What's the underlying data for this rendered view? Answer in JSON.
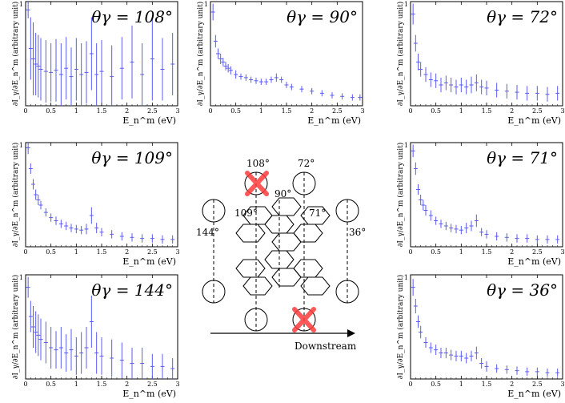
{
  "chart_data": [
    {
      "type": "scatter",
      "id": "p108",
      "title": "θγ = 108°",
      "xlabel": "E_n^m (eV)",
      "ylabel": "∂I_γ/∂E_n^m (arbitrary unit)",
      "xlim": [
        0,
        3
      ],
      "x_ticks": [
        0,
        0.5,
        1,
        1.5,
        2,
        2.5,
        3
      ],
      "x": [
        0.05,
        0.1,
        0.15,
        0.2,
        0.25,
        0.3,
        0.4,
        0.5,
        0.6,
        0.7,
        0.8,
        0.9,
        1.0,
        1.1,
        1.2,
        1.3,
        1.4,
        1.5,
        1.7,
        1.9,
        2.1,
        2.3,
        2.5,
        2.7,
        2.9
      ],
      "y": [
        0.92,
        0.55,
        0.45,
        0.4,
        0.38,
        0.35,
        0.33,
        0.32,
        0.34,
        0.3,
        0.36,
        0.28,
        0.35,
        0.3,
        0.32,
        0.5,
        0.3,
        0.33,
        0.28,
        0.36,
        0.42,
        0.3,
        0.45,
        0.35,
        0.4
      ],
      "err": [
        0.08,
        0.3,
        0.35,
        0.3,
        0.3,
        0.3,
        0.3,
        0.28,
        0.3,
        0.3,
        0.3,
        0.28,
        0.3,
        0.3,
        0.3,
        0.35,
        0.3,
        0.3,
        0.3,
        0.3,
        0.35,
        0.3,
        0.4,
        0.3,
        0.3
      ]
    },
    {
      "type": "scatter",
      "id": "p90",
      "title": "θγ = 90°",
      "xlabel": "E_n^m (eV)",
      "ylabel": "∂I_γ/∂E_n^m (arbitrary unit)",
      "xlim": [
        0,
        3
      ],
      "x_ticks": [
        0,
        0.5,
        1,
        1.5,
        2,
        2.5,
        3
      ],
      "x": [
        0.05,
        0.1,
        0.15,
        0.2,
        0.25,
        0.3,
        0.35,
        0.4,
        0.5,
        0.6,
        0.7,
        0.8,
        0.9,
        1.0,
        1.1,
        1.2,
        1.3,
        1.4,
        1.5,
        1.6,
        1.8,
        2.0,
        2.2,
        2.4,
        2.6,
        2.8,
        2.95
      ],
      "y": [
        0.9,
        0.62,
        0.5,
        0.45,
        0.42,
        0.38,
        0.36,
        0.34,
        0.3,
        0.28,
        0.27,
        0.25,
        0.24,
        0.23,
        0.23,
        0.25,
        0.27,
        0.25,
        0.2,
        0.18,
        0.16,
        0.14,
        0.12,
        0.1,
        0.09,
        0.08,
        0.08
      ],
      "err": [
        0.08,
        0.06,
        0.05,
        0.05,
        0.04,
        0.04,
        0.04,
        0.04,
        0.04,
        0.03,
        0.03,
        0.03,
        0.03,
        0.03,
        0.03,
        0.03,
        0.04,
        0.03,
        0.03,
        0.03,
        0.03,
        0.03,
        0.03,
        0.03,
        0.03,
        0.03,
        0.03
      ]
    },
    {
      "type": "scatter",
      "id": "p72",
      "title": "θγ = 72°",
      "xlabel": "E_n^m (eV)",
      "ylabel": "∂I_γ/∂E_n^m (arbitrary unit)",
      "xlim": [
        0,
        3
      ],
      "x_ticks": [
        0,
        0.5,
        1,
        1.5,
        2,
        2.5,
        3
      ],
      "x": [
        0.05,
        0.1,
        0.15,
        0.2,
        0.3,
        0.4,
        0.5,
        0.6,
        0.7,
        0.8,
        0.9,
        1.0,
        1.1,
        1.2,
        1.3,
        1.4,
        1.5,
        1.7,
        1.9,
        2.1,
        2.3,
        2.5,
        2.7,
        2.9
      ],
      "y": [
        0.88,
        0.6,
        0.42,
        0.35,
        0.3,
        0.25,
        0.24,
        0.2,
        0.22,
        0.2,
        0.18,
        0.2,
        0.18,
        0.2,
        0.22,
        0.18,
        0.17,
        0.15,
        0.14,
        0.13,
        0.12,
        0.12,
        0.11,
        0.12
      ],
      "err": [
        0.1,
        0.08,
        0.08,
        0.07,
        0.07,
        0.07,
        0.07,
        0.07,
        0.07,
        0.07,
        0.07,
        0.07,
        0.07,
        0.08,
        0.08,
        0.07,
        0.07,
        0.07,
        0.07,
        0.07,
        0.07,
        0.07,
        0.07,
        0.07
      ]
    },
    {
      "type": "scatter",
      "id": "p109",
      "title": "θγ = 109°",
      "xlabel": "E_n^m (eV)",
      "ylabel": "∂I_γ/∂E_n^m (arbitrary unit)",
      "xlim": [
        0,
        3
      ],
      "x_ticks": [
        0,
        0.5,
        1,
        1.5,
        2,
        2.5,
        3
      ],
      "x": [
        0.05,
        0.1,
        0.15,
        0.2,
        0.25,
        0.3,
        0.4,
        0.5,
        0.6,
        0.7,
        0.8,
        0.9,
        1.0,
        1.1,
        1.2,
        1.3,
        1.4,
        1.5,
        1.7,
        1.9,
        2.1,
        2.3,
        2.5,
        2.7,
        2.9
      ],
      "y": [
        0.95,
        0.75,
        0.6,
        0.5,
        0.45,
        0.4,
        0.33,
        0.28,
        0.25,
        0.22,
        0.2,
        0.18,
        0.17,
        0.16,
        0.17,
        0.3,
        0.18,
        0.14,
        0.12,
        0.1,
        0.09,
        0.08,
        0.08,
        0.07,
        0.07
      ],
      "err": [
        0.06,
        0.05,
        0.05,
        0.05,
        0.05,
        0.04,
        0.04,
        0.04,
        0.04,
        0.04,
        0.04,
        0.04,
        0.04,
        0.04,
        0.05,
        0.08,
        0.05,
        0.04,
        0.04,
        0.04,
        0.04,
        0.04,
        0.04,
        0.04,
        0.04
      ]
    },
    {
      "type": "scatter",
      "id": "p71",
      "title": "θγ = 71°",
      "xlabel": "E_n^m (eV)",
      "ylabel": "∂I_γ/∂E_n^m (arbitrary unit)",
      "xlim": [
        0,
        3
      ],
      "x_ticks": [
        0,
        0.5,
        1,
        1.5,
        2,
        2.5,
        3
      ],
      "x": [
        0.05,
        0.1,
        0.15,
        0.2,
        0.25,
        0.3,
        0.4,
        0.5,
        0.6,
        0.7,
        0.8,
        0.9,
        1.0,
        1.1,
        1.2,
        1.3,
        1.4,
        1.5,
        1.7,
        1.9,
        2.1,
        2.3,
        2.5,
        2.7,
        2.9
      ],
      "y": [
        0.92,
        0.75,
        0.55,
        0.45,
        0.4,
        0.35,
        0.3,
        0.25,
        0.22,
        0.2,
        0.18,
        0.17,
        0.16,
        0.18,
        0.2,
        0.25,
        0.14,
        0.12,
        0.1,
        0.09,
        0.08,
        0.08,
        0.07,
        0.07,
        0.07
      ],
      "err": [
        0.06,
        0.06,
        0.05,
        0.05,
        0.05,
        0.05,
        0.05,
        0.04,
        0.04,
        0.04,
        0.04,
        0.04,
        0.04,
        0.05,
        0.05,
        0.06,
        0.04,
        0.04,
        0.04,
        0.04,
        0.04,
        0.04,
        0.04,
        0.04,
        0.04
      ]
    },
    {
      "type": "scatter",
      "id": "p144",
      "title": "θγ = 144°",
      "xlabel": "E_n^m (eV)",
      "ylabel": "∂I_γ/∂E_n^m (arbitrary unit)",
      "xlim": [
        0,
        3
      ],
      "x_ticks": [
        0,
        0.5,
        1,
        1.5,
        2,
        2.5,
        3
      ],
      "x": [
        0.05,
        0.1,
        0.15,
        0.2,
        0.25,
        0.3,
        0.4,
        0.5,
        0.6,
        0.7,
        0.8,
        0.9,
        1.0,
        1.1,
        1.2,
        1.3,
        1.4,
        1.5,
        1.7,
        1.9,
        2.1,
        2.3,
        2.5,
        2.7,
        2.9
      ],
      "y": [
        0.88,
        0.6,
        0.5,
        0.45,
        0.42,
        0.38,
        0.35,
        0.3,
        0.28,
        0.3,
        0.25,
        0.28,
        0.22,
        0.25,
        0.3,
        0.55,
        0.25,
        0.22,
        0.2,
        0.18,
        0.15,
        0.15,
        0.12,
        0.12,
        0.1
      ],
      "err": [
        0.1,
        0.15,
        0.2,
        0.2,
        0.2,
        0.2,
        0.2,
        0.2,
        0.18,
        0.2,
        0.18,
        0.2,
        0.18,
        0.2,
        0.2,
        0.25,
        0.2,
        0.18,
        0.18,
        0.17,
        0.15,
        0.15,
        0.12,
        0.12,
        0.1
      ]
    },
    {
      "type": "scatter",
      "id": "p36",
      "title": "θγ = 36°",
      "xlabel": "E_n^m (eV)",
      "ylabel": "∂I_γ/∂E_n^m (arbitrary unit)",
      "xlim": [
        0,
        3
      ],
      "x_ticks": [
        0,
        0.5,
        1,
        1.5,
        2,
        2.5,
        3
      ],
      "x": [
        0.05,
        0.1,
        0.15,
        0.2,
        0.3,
        0.4,
        0.5,
        0.6,
        0.7,
        0.8,
        0.9,
        1.0,
        1.1,
        1.2,
        1.3,
        1.4,
        1.5,
        1.7,
        1.9,
        2.1,
        2.3,
        2.5,
        2.7,
        2.9
      ],
      "y": [
        0.88,
        0.7,
        0.55,
        0.45,
        0.35,
        0.3,
        0.28,
        0.25,
        0.25,
        0.23,
        0.22,
        0.22,
        0.2,
        0.22,
        0.25,
        0.15,
        0.12,
        0.1,
        0.09,
        0.08,
        0.07,
        0.07,
        0.06,
        0.06
      ],
      "err": [
        0.08,
        0.07,
        0.06,
        0.06,
        0.05,
        0.05,
        0.05,
        0.05,
        0.05,
        0.05,
        0.05,
        0.05,
        0.05,
        0.05,
        0.06,
        0.05,
        0.05,
        0.04,
        0.04,
        0.04,
        0.04,
        0.04,
        0.04,
        0.04
      ]
    }
  ],
  "diagram": {
    "labels": {
      "d108": "108°",
      "d72": "72°",
      "d90": "90°",
      "d109": "109°",
      "d71": "71°",
      "d144": "144°",
      "d36": "36°"
    },
    "arrow_label": "Downstream"
  },
  "colors": {
    "data": "#5b5bf0",
    "cross": "#ff3b3b",
    "axis": "#000000"
  }
}
